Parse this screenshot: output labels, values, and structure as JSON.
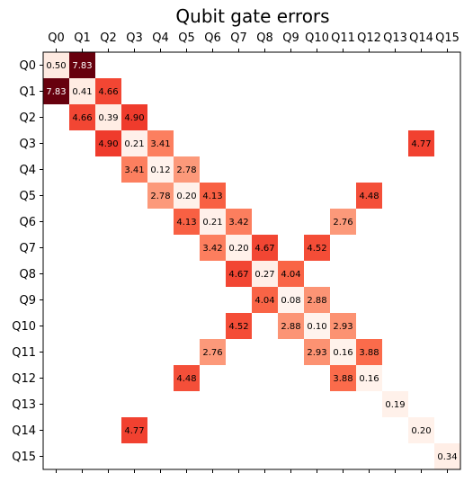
{
  "chart_data": {
    "type": "heatmap",
    "title": "Qubit gate errors",
    "colormap": "Reds",
    "value_range": [
      0,
      7.83
    ],
    "x_tick_labels": [
      "Q0",
      "Q1",
      "Q2",
      "Q3",
      "Q4",
      "Q5",
      "Q6",
      "Q7",
      "Q8",
      "Q9",
      "Q10",
      "Q11",
      "Q12",
      "Q13",
      "Q14",
      "Q15"
    ],
    "y_tick_labels": [
      "Q0",
      "Q1",
      "Q2",
      "Q3",
      "Q4",
      "Q5",
      "Q6",
      "Q7",
      "Q8",
      "Q9",
      "Q10",
      "Q11",
      "Q12",
      "Q13",
      "Q14",
      "Q15"
    ],
    "x_ticks_position": "top",
    "cells": [
      {
        "row": 0,
        "col": 0,
        "value": 0.5,
        "label": "0.50"
      },
      {
        "row": 0,
        "col": 1,
        "value": 7.83,
        "label": "7.83"
      },
      {
        "row": 1,
        "col": 0,
        "value": 7.83,
        "label": "7.83"
      },
      {
        "row": 1,
        "col": 1,
        "value": 0.41,
        "label": "0.41"
      },
      {
        "row": 1,
        "col": 2,
        "value": 4.66,
        "label": "4.66"
      },
      {
        "row": 2,
        "col": 1,
        "value": 4.66,
        "label": "4.66"
      },
      {
        "row": 2,
        "col": 2,
        "value": 0.39,
        "label": "0.39"
      },
      {
        "row": 2,
        "col": 3,
        "value": 4.9,
        "label": "4.90"
      },
      {
        "row": 3,
        "col": 2,
        "value": 4.9,
        "label": "4.90"
      },
      {
        "row": 3,
        "col": 3,
        "value": 0.21,
        "label": "0.21"
      },
      {
        "row": 3,
        "col": 4,
        "value": 3.41,
        "label": "3.41"
      },
      {
        "row": 3,
        "col": 14,
        "value": 4.77,
        "label": "4.77"
      },
      {
        "row": 4,
        "col": 3,
        "value": 3.41,
        "label": "3.41"
      },
      {
        "row": 4,
        "col": 4,
        "value": 0.12,
        "label": "0.12"
      },
      {
        "row": 4,
        "col": 5,
        "value": 2.78,
        "label": "2.78"
      },
      {
        "row": 5,
        "col": 4,
        "value": 2.78,
        "label": "2.78"
      },
      {
        "row": 5,
        "col": 5,
        "value": 0.2,
        "label": "0.20"
      },
      {
        "row": 5,
        "col": 6,
        "value": 4.13,
        "label": "4.13"
      },
      {
        "row": 5,
        "col": 12,
        "value": 4.48,
        "label": "4.48"
      },
      {
        "row": 6,
        "col": 5,
        "value": 4.13,
        "label": "4.13"
      },
      {
        "row": 6,
        "col": 6,
        "value": 0.21,
        "label": "0.21"
      },
      {
        "row": 6,
        "col": 7,
        "value": 3.42,
        "label": "3.42"
      },
      {
        "row": 6,
        "col": 11,
        "value": 2.76,
        "label": "2.76"
      },
      {
        "row": 7,
        "col": 6,
        "value": 3.42,
        "label": "3.42"
      },
      {
        "row": 7,
        "col": 7,
        "value": 0.2,
        "label": "0.20"
      },
      {
        "row": 7,
        "col": 8,
        "value": 4.67,
        "label": "4.67"
      },
      {
        "row": 7,
        "col": 10,
        "value": 4.52,
        "label": "4.52"
      },
      {
        "row": 8,
        "col": 7,
        "value": 4.67,
        "label": "4.67"
      },
      {
        "row": 8,
        "col": 8,
        "value": 0.27,
        "label": "0.27"
      },
      {
        "row": 8,
        "col": 9,
        "value": 4.04,
        "label": "4.04"
      },
      {
        "row": 9,
        "col": 8,
        "value": 4.04,
        "label": "4.04"
      },
      {
        "row": 9,
        "col": 9,
        "value": 0.08,
        "label": "0.08"
      },
      {
        "row": 9,
        "col": 10,
        "value": 2.88,
        "label": "2.88"
      },
      {
        "row": 10,
        "col": 7,
        "value": 4.52,
        "label": "4.52"
      },
      {
        "row": 10,
        "col": 9,
        "value": 2.88,
        "label": "2.88"
      },
      {
        "row": 10,
        "col": 10,
        "value": 0.1,
        "label": "0.10"
      },
      {
        "row": 10,
        "col": 11,
        "value": 2.93,
        "label": "2.93"
      },
      {
        "row": 11,
        "col": 6,
        "value": 2.76,
        "label": "2.76"
      },
      {
        "row": 11,
        "col": 10,
        "value": 2.93,
        "label": "2.93"
      },
      {
        "row": 11,
        "col": 11,
        "value": 0.16,
        "label": "0.16"
      },
      {
        "row": 11,
        "col": 12,
        "value": 3.88,
        "label": "3.88"
      },
      {
        "row": 12,
        "col": 5,
        "value": 4.48,
        "label": "4.48"
      },
      {
        "row": 12,
        "col": 11,
        "value": 3.88,
        "label": "3.88"
      },
      {
        "row": 12,
        "col": 12,
        "value": 0.16,
        "label": "0.16"
      },
      {
        "row": 13,
        "col": 13,
        "value": 0.19,
        "label": "0.19"
      },
      {
        "row": 14,
        "col": 3,
        "value": 4.77,
        "label": "4.77"
      },
      {
        "row": 14,
        "col": 14,
        "value": 0.2,
        "label": "0.20"
      },
      {
        "row": 15,
        "col": 15,
        "value": 0.34,
        "label": "0.34"
      }
    ]
  }
}
